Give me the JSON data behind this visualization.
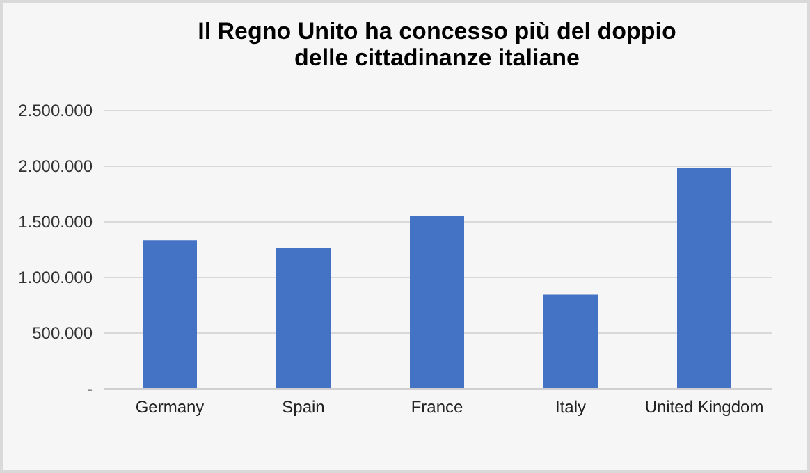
{
  "chart_data": {
    "type": "bar",
    "title": [
      "Il Regno Unito ha concesso più del doppio",
      "delle cittadinanze italiane"
    ],
    "categories": [
      "Germany",
      "Spain",
      "France",
      "Italy",
      "United Kingdom"
    ],
    "values": [
      1330000,
      1260000,
      1550000,
      840000,
      1980000
    ],
    "color": "#4472c4",
    "ylim": [
      0,
      2500000
    ],
    "yticks": [
      {
        "value": 0,
        "label": "-"
      },
      {
        "value": 500000,
        "label": "500.000"
      },
      {
        "value": 1000000,
        "label": "1.000.000"
      },
      {
        "value": 1500000,
        "label": "1.500.000"
      },
      {
        "value": 2000000,
        "label": "2.000.000"
      },
      {
        "value": 2500000,
        "label": "2.500.000"
      }
    ],
    "grid": "y"
  }
}
